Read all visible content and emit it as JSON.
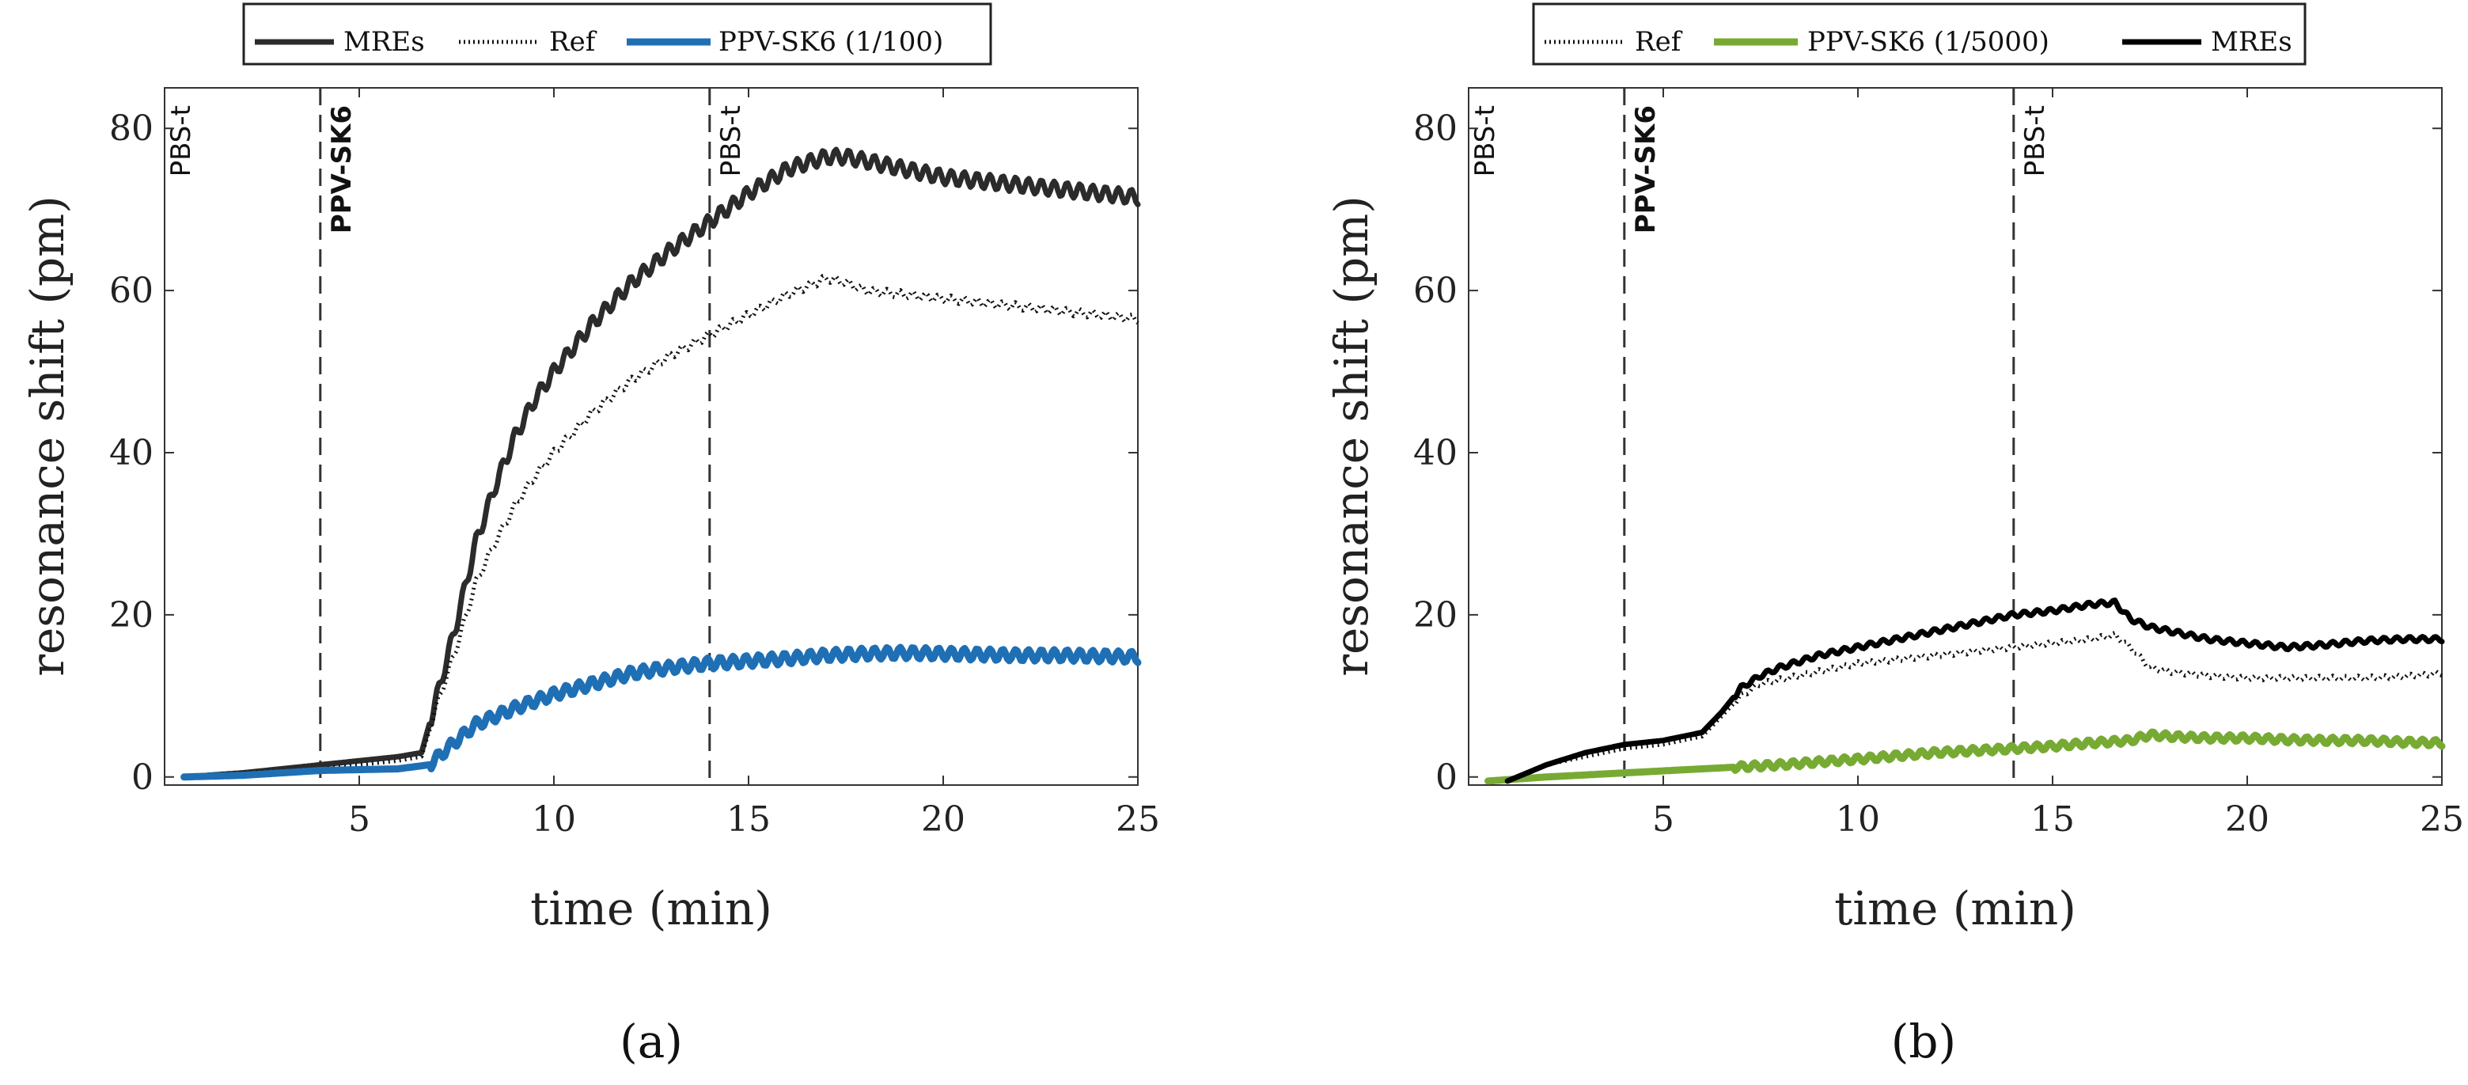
{
  "chart_data": [
    {
      "type": "line",
      "panel": "a",
      "caption": "(a)",
      "title": "",
      "xlabel": "time (min)",
      "ylabel": "resonance shift (pm)",
      "xlim": [
        0,
        25
      ],
      "ylim": [
        -1,
        85
      ],
      "xticks": [
        5,
        10,
        15,
        20,
        25
      ],
      "yticks": [
        0,
        20,
        40,
        60,
        80
      ],
      "grid": false,
      "legend_position": "top-center",
      "legend": [
        "MREs",
        "Ref",
        "PPV-SK6 (1/100)"
      ],
      "vlines": [
        {
          "x": 4,
          "label": "PPV-SK6",
          "bold": true
        },
        {
          "x": 14,
          "label": "PBS-t",
          "bold": false
        }
      ],
      "start_label": "PBS-t",
      "series": [
        {
          "name": "MREs",
          "color": "#2b2b2b",
          "style": "solid",
          "width": 7,
          "ripple": 0.9,
          "x": [
            0.5,
            2,
            4,
            6,
            6.6,
            7,
            7.5,
            8,
            8.5,
            9,
            9.5,
            10,
            11,
            12,
            13,
            14,
            15,
            16,
            17,
            17.5,
            18,
            19,
            20,
            21,
            22,
            23,
            24,
            25
          ],
          "y": [
            0,
            0.5,
            1.5,
            2.5,
            3,
            10,
            19,
            29,
            36,
            42,
            46.5,
            50,
            56,
            61,
            65,
            68.5,
            72,
            75,
            76.5,
            76.5,
            76,
            75,
            74,
            73.5,
            73,
            72.5,
            72,
            71.5
          ]
        },
        {
          "name": "Ref",
          "color": "#111111",
          "style": "dotted",
          "width": 5,
          "ripple": 0.5,
          "x": [
            0.5,
            2,
            4,
            6,
            6.6,
            7,
            7.5,
            8,
            8.5,
            9,
            9.5,
            10,
            11,
            12,
            13,
            14,
            15,
            16,
            17,
            17.5,
            18,
            19,
            20,
            21,
            22,
            23,
            24,
            25
          ],
          "y": [
            0,
            0.5,
            1,
            2,
            2.5,
            9,
            16,
            24,
            29,
            33.5,
            37,
            40,
            45,
            49,
            52,
            54.5,
            57,
            59.5,
            61.5,
            61,
            60,
            59.5,
            59,
            58.5,
            58,
            57.5,
            57,
            56.5
          ]
        },
        {
          "name": "PPV-SK6 (1/100)",
          "color": "#1f6fb5",
          "style": "solid",
          "width": 9,
          "ripple": 0.7,
          "x": [
            0.5,
            2,
            4,
            6,
            6.8,
            7.5,
            8,
            9,
            10,
            11,
            12,
            13,
            14,
            15,
            16,
            17,
            18,
            19,
            20,
            21,
            22,
            23,
            24,
            25
          ],
          "y": [
            0,
            0.2,
            0.8,
            1,
            1.5,
            4.5,
            6.5,
            8.5,
            10.2,
            11.5,
            12.8,
            13.5,
            14,
            14.3,
            14.6,
            15,
            15.2,
            15.3,
            15.2,
            15.1,
            15,
            15,
            14.9,
            14.8
          ]
        }
      ]
    },
    {
      "type": "line",
      "panel": "b",
      "caption": "(b)",
      "title": "",
      "xlabel": "time (min)",
      "ylabel": "resonance shift (pm)",
      "xlim": [
        0,
        25
      ],
      "ylim": [
        -1,
        85
      ],
      "xticks": [
        5,
        10,
        15,
        20,
        25
      ],
      "yticks": [
        0,
        20,
        40,
        60,
        80
      ],
      "grid": false,
      "legend_position": "top-center",
      "legend": [
        "Ref",
        "PPV-SK6 (1/5000)",
        "MREs"
      ],
      "vlines": [
        {
          "x": 4,
          "label": "PPV-SK6",
          "bold": true
        },
        {
          "x": 14,
          "label": "PBS-t",
          "bold": false
        }
      ],
      "start_label": "PBS-t",
      "series": [
        {
          "name": "Ref",
          "color": "#111111",
          "style": "dotted",
          "width": 5,
          "ripple": 0.3,
          "x": [
            1,
            2,
            3,
            4,
            5,
            6,
            6.5,
            7,
            7.5,
            8,
            9,
            10,
            11,
            12,
            13,
            14,
            15,
            16,
            16.6,
            17,
            17.5,
            18,
            19,
            20,
            21,
            22,
            23,
            24,
            25
          ],
          "y": [
            -0.5,
            1.5,
            2.5,
            3.5,
            4,
            5,
            7.5,
            10,
            11.5,
            12,
            13,
            14,
            14.5,
            15,
            15.5,
            16,
            16.5,
            17,
            17.5,
            16,
            13.5,
            13,
            12.5,
            12.2,
            12.2,
            12.2,
            12.2,
            12.4,
            12.8
          ]
        },
        {
          "name": "PPV-SK6 (1/5000)",
          "color": "#77aa33",
          "style": "solid",
          "width": 9,
          "ripple": 0.4,
          "x": [
            0.5,
            2,
            4,
            6,
            8,
            10,
            12,
            14,
            15,
            16,
            17,
            17.5,
            18,
            19,
            20,
            21,
            22,
            23,
            24,
            25
          ],
          "y": [
            -0.5,
            0,
            0.5,
            1,
            1.5,
            2.2,
            3,
            3.5,
            3.8,
            4.2,
            4.5,
            5.2,
            5,
            4.8,
            4.8,
            4.6,
            4.5,
            4.5,
            4.3,
            4.2
          ]
        },
        {
          "name": "MREs",
          "color": "#000000",
          "style": "solid",
          "width": 7,
          "ripple": 0.3,
          "x": [
            1,
            2,
            3,
            4,
            5,
            6,
            6.5,
            7,
            7.5,
            8,
            9,
            10,
            11,
            12,
            13,
            14,
            15,
            16,
            16.6,
            17,
            17.5,
            18,
            19,
            20,
            21,
            22,
            23,
            24,
            25
          ],
          "y": [
            -0.5,
            1.5,
            3,
            4,
            4.5,
            5.5,
            8,
            11,
            12.5,
            13.5,
            15,
            16,
            17,
            18,
            19,
            20,
            20.5,
            21.3,
            21.5,
            19.5,
            18.5,
            18,
            17,
            16.5,
            16,
            16.3,
            16.8,
            17,
            17
          ]
        }
      ]
    }
  ]
}
